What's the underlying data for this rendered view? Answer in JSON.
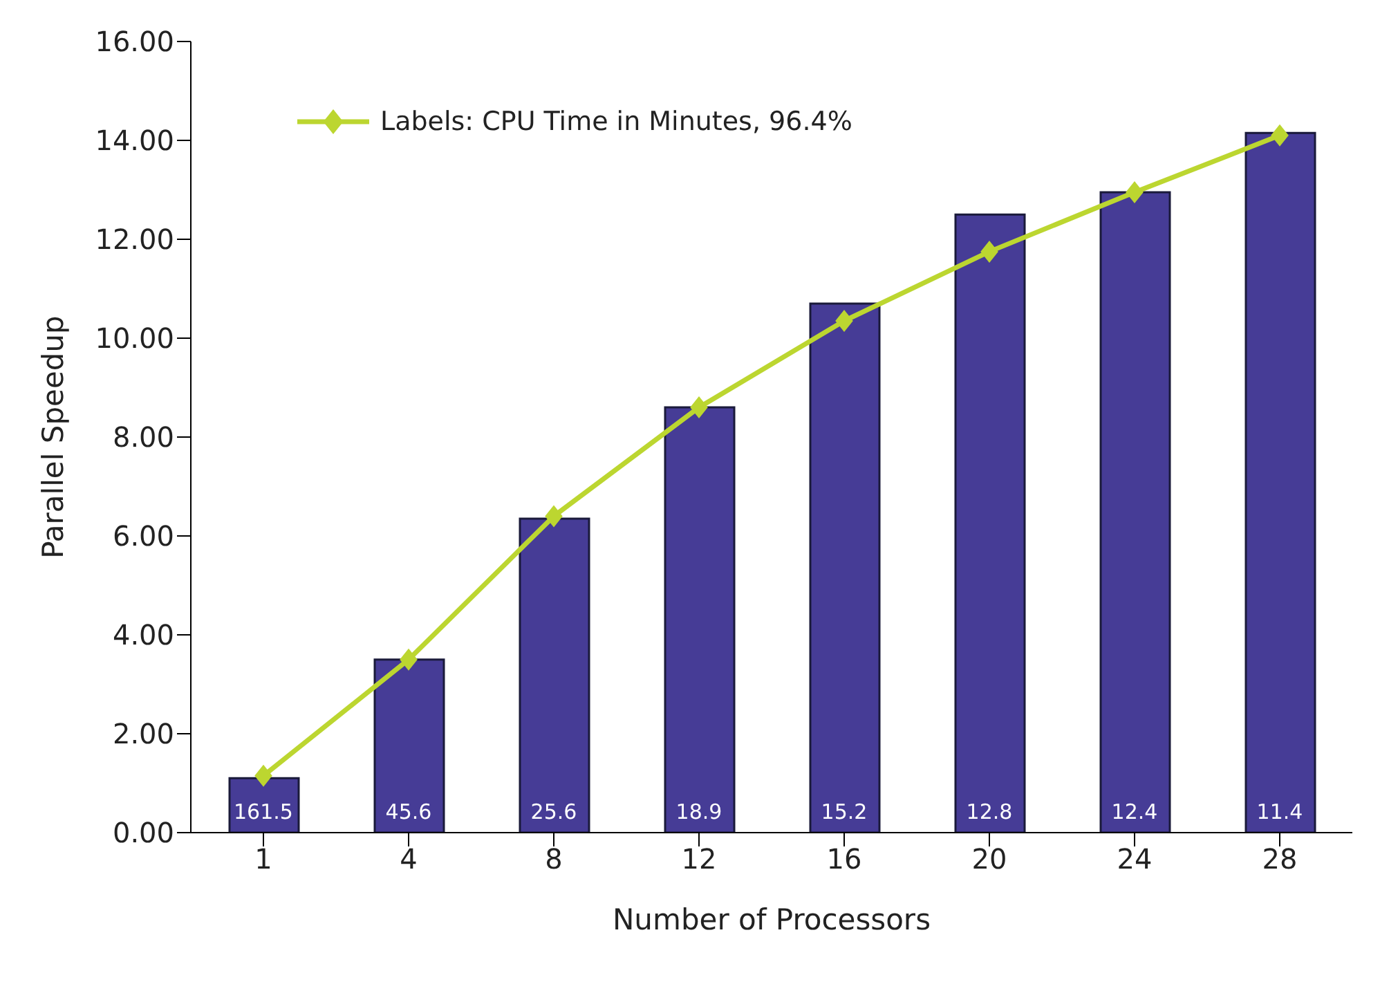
{
  "chart_data": {
    "type": "bar",
    "xlabel": "Number of Processors",
    "ylabel": "Parallel Speedup",
    "categories": [
      "1",
      "4",
      "8",
      "12",
      "16",
      "20",
      "24",
      "28"
    ],
    "series": [
      {
        "color": "#463c96",
        "values": [
          1.1,
          3.5,
          6.35,
          8.6,
          10.7,
          12.5,
          12.95,
          14.15
        ]
      },
      {
        "type": "line",
        "name": "Labels: CPU Time in Minutes, 96.4%",
        "color": "#bcd630",
        "values": [
          1.15,
          3.5,
          6.4,
          8.6,
          10.35,
          11.75,
          12.95,
          14.1
        ]
      }
    ],
    "annotations": [
      {
        "text": "161.5",
        "x": "1",
        "y": 0
      },
      {
        "text": "45.6",
        "x": "4",
        "y": 0
      },
      {
        "text": "25.6",
        "x": "8",
        "y": 0
      },
      {
        "text": "18.9",
        "x": "12",
        "y": 0
      },
      {
        "text": "15.2",
        "x": "16",
        "y": 0
      },
      {
        "text": "12.8",
        "x": "20",
        "y": 0
      },
      {
        "text": "12.4",
        "x": "24",
        "y": 0
      },
      {
        "text": "11.4",
        "x": "28",
        "y": 0
      }
    ],
    "ylim": [
      0,
      16
    ],
    "yticks": [
      {
        "value": 0,
        "label": "0.00"
      },
      {
        "value": 2,
        "label": "2.00"
      },
      {
        "value": 4,
        "label": "4.00"
      },
      {
        "value": 6,
        "label": "6.00"
      },
      {
        "value": 8,
        "label": "8.00"
      },
      {
        "value": 10,
        "label": "10.00"
      },
      {
        "value": 12,
        "label": "12.00"
      },
      {
        "value": 14,
        "label": "14.00"
      },
      {
        "value": 16,
        "label": "16.00"
      }
    ],
    "grid": false,
    "legend": "top left",
    "marker": "diamond",
    "line_style": "solid"
  }
}
